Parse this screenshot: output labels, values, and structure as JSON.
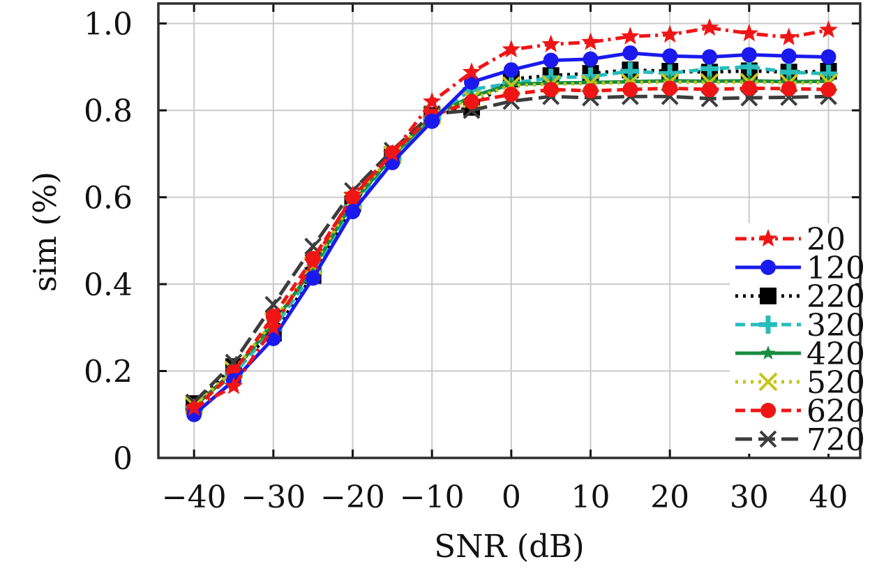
{
  "chart_data": {
    "type": "line",
    "title": "",
    "xlabel": "SNR (dB)",
    "ylabel": "sim (%)",
    "xlim": [
      -44.5,
      44
    ],
    "ylim": [
      0,
      1.046
    ],
    "grid": true,
    "legend_position": "center-right",
    "x_ticks": {
      "values": [
        -40,
        -30,
        -20,
        -10,
        0,
        10,
        20,
        30,
        40
      ],
      "labels": [
        "−40",
        "−30",
        "−20",
        "−10",
        "0",
        "10",
        "20",
        "30",
        "40"
      ]
    },
    "y_ticks": {
      "values": [
        0,
        0.2,
        0.4,
        0.6,
        0.8,
        1.0
      ],
      "labels": [
        "0",
        "0.2",
        "0.4",
        "0.6",
        "0.8",
        "1.0"
      ]
    },
    "x": [
      -40,
      -35,
      -30,
      -25,
      -20,
      -15,
      -10,
      -5,
      0,
      5,
      10,
      15,
      20,
      25,
      30,
      35,
      40
    ],
    "series": [
      {
        "name": "20",
        "color": "#f01515",
        "line_style": "dashdot",
        "marker": "star",
        "marker_size": 14,
        "values": [
          0.115,
          0.165,
          0.3,
          0.45,
          0.605,
          0.7,
          0.82,
          0.888,
          0.94,
          0.952,
          0.957,
          0.97,
          0.974,
          0.99,
          0.977,
          0.968,
          0.985
        ]
      },
      {
        "name": "120",
        "color": "#1a1aee",
        "line_style": "solid",
        "marker": "circle",
        "marker_size": 11,
        "values": [
          0.1,
          0.178,
          0.275,
          0.414,
          0.567,
          0.68,
          0.775,
          0.865,
          0.893,
          0.915,
          0.918,
          0.932,
          0.925,
          0.923,
          0.928,
          0.925,
          0.923
        ]
      },
      {
        "name": "220",
        "color": "#000000",
        "line_style": "dotted",
        "marker": "square",
        "marker_size": 12,
        "values": [
          0.125,
          0.21,
          0.287,
          0.42,
          0.585,
          0.696,
          0.788,
          0.807,
          0.872,
          0.88,
          0.885,
          0.893,
          0.89,
          0.888,
          0.891,
          0.888,
          0.89
        ]
      },
      {
        "name": "320",
        "color": "#27bcbc",
        "line_style": "dashed",
        "marker": "plus",
        "marker_size": 13,
        "values": [
          0.115,
          0.193,
          0.297,
          0.428,
          0.578,
          0.688,
          0.783,
          0.848,
          0.862,
          0.875,
          0.878,
          0.89,
          0.885,
          0.896,
          0.9,
          0.888,
          0.884
        ]
      },
      {
        "name": "420",
        "color": "#178c40",
        "line_style": "solid",
        "marker": "star",
        "marker_size": 11,
        "values": [
          0.118,
          0.2,
          0.31,
          0.437,
          0.588,
          0.694,
          0.786,
          0.832,
          0.86,
          0.863,
          0.864,
          0.866,
          0.868,
          0.867,
          0.868,
          0.866,
          0.867
        ]
      },
      {
        "name": "520",
        "color": "#c5c519",
        "line_style": "dotted",
        "marker": "x",
        "marker_size": 12,
        "values": [
          0.121,
          0.202,
          0.315,
          0.443,
          0.593,
          0.698,
          0.79,
          0.826,
          0.857,
          0.86,
          0.862,
          0.864,
          0.865,
          0.864,
          0.865,
          0.863,
          0.864
        ]
      },
      {
        "name": "620",
        "color": "#f01515",
        "line_style": "dashed",
        "marker": "circle",
        "marker_size": 11,
        "values": [
          0.112,
          0.198,
          0.326,
          0.459,
          0.6,
          0.702,
          0.787,
          0.82,
          0.837,
          0.848,
          0.845,
          0.848,
          0.851,
          0.848,
          0.851,
          0.85,
          0.848
        ]
      },
      {
        "name": "720",
        "color": "#3d3d3d",
        "line_style": "longdash",
        "marker": "x",
        "marker_size": 11,
        "values": [
          0.128,
          0.22,
          0.353,
          0.487,
          0.615,
          0.708,
          0.792,
          0.8,
          0.821,
          0.832,
          0.829,
          0.832,
          0.832,
          0.827,
          0.829,
          0.83,
          0.832
        ]
      }
    ],
    "colors": {
      "grid": "#cacaca",
      "border": "#2e2e2e",
      "tick": "#111111"
    }
  }
}
